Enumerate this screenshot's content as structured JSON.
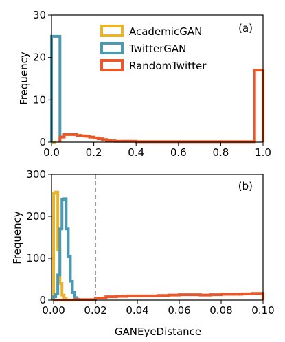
{
  "colors": {
    "AcademicGAN": "#e8b52a",
    "TwitterGAN": "#4b9ab4",
    "RandomTwitter": "#e8582a",
    "threshold": "#888888"
  },
  "chart_data": [
    {
      "panel": "(a)",
      "type": "histogram-step",
      "xlabel": "",
      "ylabel": "Frequency",
      "xlim": [
        0.0,
        1.0
      ],
      "ylim": [
        0,
        30
      ],
      "xticks": [
        "0.0",
        "0.2",
        "0.4",
        "0.6",
        "0.8",
        "1.0"
      ],
      "yticks": [
        "0",
        "10",
        "20",
        "30"
      ],
      "legend": {
        "position": "top-center",
        "entries": [
          "AcademicGAN",
          "TwitterGAN",
          "RandomTwitter"
        ]
      },
      "series": [
        {
          "name": "AcademicGAN",
          "edges": [
            0.0,
            0.02
          ],
          "counts": [
            0
          ]
        },
        {
          "name": "TwitterGAN",
          "edges": [
            0.0,
            0.04
          ],
          "counts": [
            25
          ]
        },
        {
          "name": "RandomTwitter",
          "edges": [
            0.04,
            0.06,
            0.08,
            0.1,
            0.12,
            0.14,
            0.16,
            0.18,
            0.2,
            0.22,
            0.24,
            0.26,
            0.28,
            0.3,
            0.4,
            0.5,
            0.6,
            0.7,
            0.8,
            0.9,
            0.96,
            1.0
          ],
          "counts": [
            1.2,
            1.8,
            1.8,
            1.8,
            1.6,
            1.5,
            1.4,
            1.2,
            1.0,
            0.8,
            0.6,
            0.4,
            0.3,
            0.2,
            0.1,
            0.1,
            0.1,
            0.1,
            0.1,
            0.1,
            17
          ]
        }
      ]
    },
    {
      "panel": "(b)",
      "type": "histogram-step",
      "xlabel": "GANEyeDistance",
      "ylabel": "Frequency",
      "xlim": [
        -0.001,
        0.1
      ],
      "ylim": [
        0,
        300
      ],
      "xticks": [
        "0.00",
        "0.02",
        "0.04",
        "0.06",
        "0.08",
        "0.10"
      ],
      "yticks": [
        "0",
        "100",
        "200",
        "300"
      ],
      "threshold_x": 0.02,
      "series": [
        {
          "name": "AcademicGAN",
          "edges": [
            0.0,
            0.001,
            0.002,
            0.003,
            0.004,
            0.005,
            0.006
          ],
          "counts": [
            255,
            258,
            120,
            40,
            12,
            3
          ]
        },
        {
          "name": "TwitterGAN",
          "edges": [
            0.0,
            0.001,
            0.002,
            0.003,
            0.004,
            0.005,
            0.006,
            0.007,
            0.008,
            0.009,
            0.01,
            0.011,
            0.012
          ],
          "counts": [
            8,
            15,
            60,
            170,
            240,
            242,
            170,
            105,
            45,
            18,
            6,
            2
          ]
        },
        {
          "name": "RandomTwitter",
          "edges": [
            0.0,
            0.01,
            0.02,
            0.025,
            0.03,
            0.035,
            0.04,
            0.045,
            0.05,
            0.055,
            0.06,
            0.065,
            0.07,
            0.075,
            0.08,
            0.085,
            0.09,
            0.095,
            0.1
          ],
          "counts": [
            0,
            1,
            5,
            8,
            9,
            10,
            10,
            10,
            11,
            12,
            13,
            13,
            12,
            13,
            14,
            14,
            15,
            16
          ]
        }
      ]
    }
  ]
}
